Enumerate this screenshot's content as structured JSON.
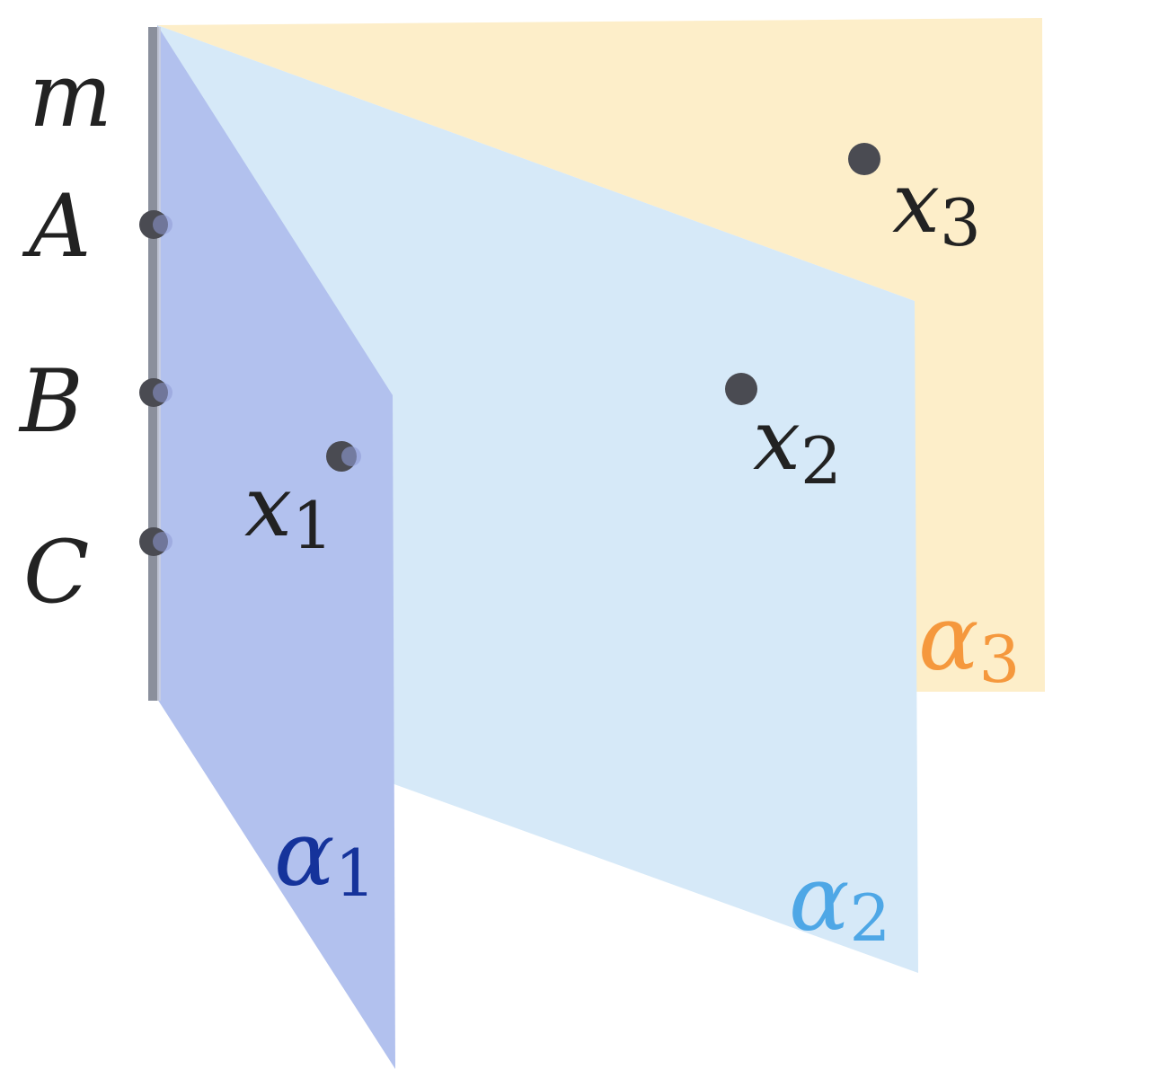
{
  "diagram": {
    "line": {
      "label": "m",
      "color": "#8a8f9c"
    },
    "line_points": [
      {
        "label": "A"
      },
      {
        "label": "B"
      },
      {
        "label": "C"
      }
    ],
    "planes": [
      {
        "symbol": "α",
        "sub": "1",
        "fill": "#b2c1ee",
        "label_color": "#15339b"
      },
      {
        "symbol": "α",
        "sub": "2",
        "fill": "#d6e9f8",
        "label_color": "#4ea7e6"
      },
      {
        "symbol": "α",
        "sub": "3",
        "fill": "#fdeec9",
        "label_color": "#f5983d"
      }
    ],
    "plane_points": [
      {
        "symbol": "x",
        "sub": "1"
      },
      {
        "symbol": "x",
        "sub": "2"
      },
      {
        "symbol": "x",
        "sub": "3"
      }
    ],
    "text_color": "#222222",
    "dot_color": "#4a4b52"
  }
}
